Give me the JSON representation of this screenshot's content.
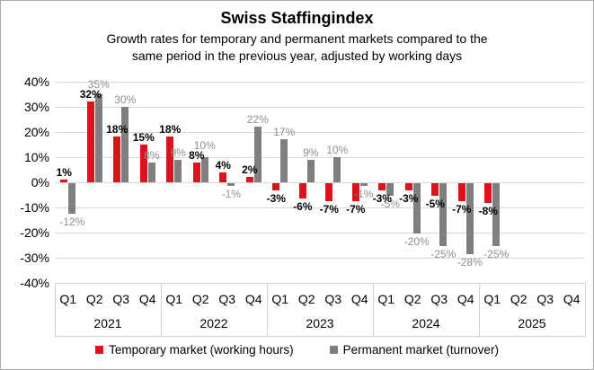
{
  "chart_data": {
    "type": "bar",
    "title": "Swiss Staffingindex",
    "subtitle_line1": "Growth rates for temporary and permanent markets compared to the",
    "subtitle_line2": "same period in the previous year, adjusted by working days",
    "years": [
      "2021",
      "2022",
      "2023",
      "2024",
      "2025"
    ],
    "quarters": [
      "Q1",
      "Q2",
      "Q3",
      "Q4"
    ],
    "ylim": [
      -40,
      40
    ],
    "ytick_step": 10,
    "ytick_labels": [
      "40%",
      "30%",
      "20%",
      "10%",
      "0%",
      "-10%",
      "-20%",
      "-30%",
      "-40%"
    ],
    "ytick_values": [
      40,
      30,
      20,
      10,
      0,
      -10,
      -20,
      -30,
      -40
    ],
    "grid": "horizontal",
    "legend_position": "bottom",
    "series": [
      {
        "name": "Temporary market (working hours)",
        "color": "#d9141c",
        "label_color": "#000000",
        "values": [
          1,
          32,
          18,
          15,
          18,
          8,
          4,
          2,
          -3,
          -6,
          -7,
          -7,
          -3,
          -3,
          -5,
          -7,
          -8,
          null,
          null,
          null
        ]
      },
      {
        "name": "Permanent market (turnover)",
        "color": "#7f7f7f",
        "label_color": "#8f8f8f",
        "values": [
          -12,
          35,
          30,
          8,
          9,
          10,
          -1,
          22,
          17,
          9,
          10,
          -1,
          -5,
          -20,
          -25,
          -28,
          -25,
          null,
          null,
          null
        ]
      }
    ],
    "gridline_color": "#d9d9d9",
    "axis_table_border_color": "#d2d2d2"
  }
}
